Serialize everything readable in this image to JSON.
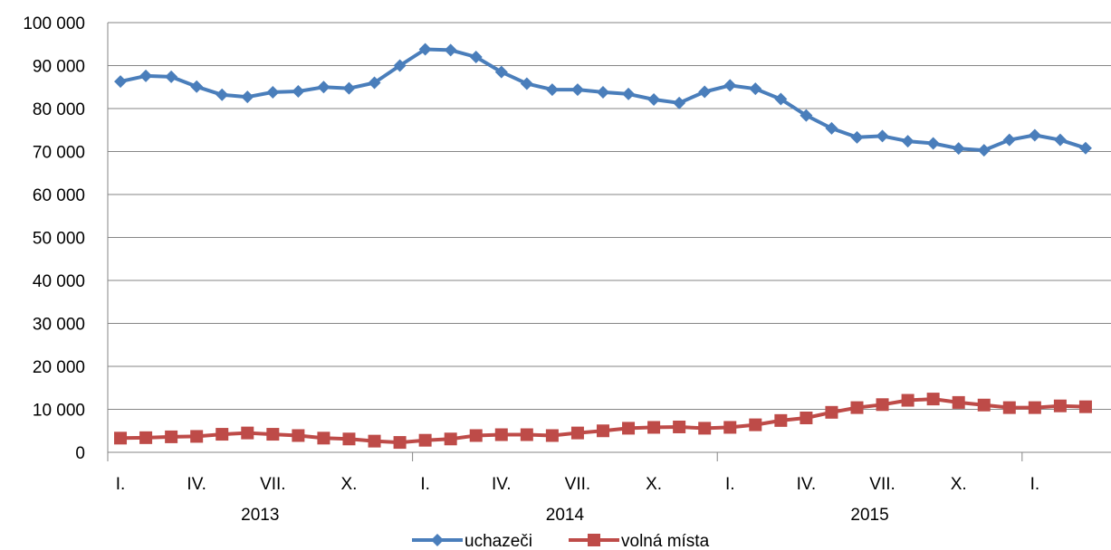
{
  "chart_data": {
    "type": "line",
    "title": "",
    "xlabel": "",
    "ylabel": "",
    "ylim": [
      0,
      100000
    ],
    "grid": "horizontal",
    "legend_position": "bottom",
    "y_ticks": [
      "0",
      "10 000",
      "20 000",
      "30 000",
      "40 000",
      "50 000",
      "60 000",
      "70 000",
      "80 000",
      "90 000",
      "100 000"
    ],
    "x_month_labels": [
      "I.",
      "IV.",
      "VII.",
      "X.",
      "I.",
      "IV.",
      "VII.",
      "X.",
      "I.",
      "IV.",
      "VII.",
      "X.",
      "I."
    ],
    "x_month_label_index": [
      0,
      3,
      6,
      9,
      12,
      15,
      18,
      21,
      24,
      27,
      30,
      33,
      36
    ],
    "years": [
      "2013",
      "2014",
      "2015"
    ],
    "series": [
      {
        "name": "uchazeči",
        "color": "#4A7EBB",
        "marker": "diamond",
        "values": [
          86300,
          87600,
          87400,
          85100,
          83200,
          82700,
          83800,
          84000,
          85000,
          84700,
          86000,
          90000,
          93800,
          93600,
          92000,
          88500,
          85800,
          84400,
          84400,
          83800,
          83400,
          82100,
          81300,
          83900,
          85400,
          84600,
          82200,
          78400,
          75400,
          73300,
          73600,
          72400,
          71900,
          70700,
          70300,
          72700,
          73800,
          72700,
          70800
        ]
      },
      {
        "name": "volná místa",
        "color": "#BE4B48",
        "marker": "square",
        "values": [
          3300,
          3400,
          3600,
          3700,
          4200,
          4500,
          4200,
          3900,
          3300,
          3100,
          2600,
          2300,
          2800,
          3100,
          3900,
          4100,
          4100,
          3900,
          4500,
          5000,
          5600,
          5800,
          5900,
          5600,
          5800,
          6400,
          7400,
          8000,
          9300,
          10400,
          11100,
          12100,
          12400,
          11600,
          11000,
          10400,
          10400,
          10800,
          10600
        ]
      }
    ]
  }
}
